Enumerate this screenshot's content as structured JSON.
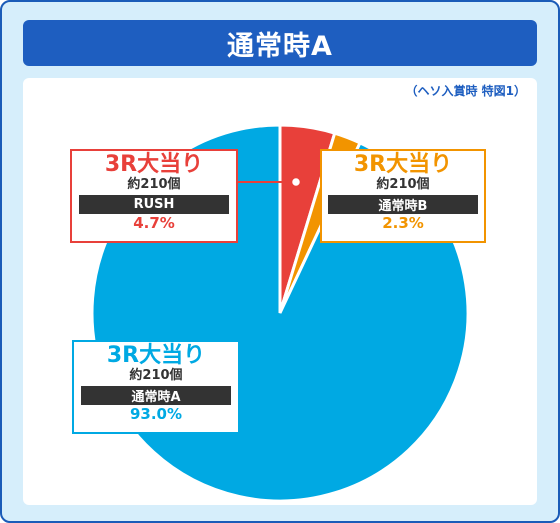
{
  "header": {
    "title": "通常時A"
  },
  "note": "（ヘソ入賞時 特図1）",
  "colors": {
    "rush": "#e8403a",
    "normal_b": "#f29400",
    "normal_a": "#00a9e3",
    "frame": "#1a5bb8",
    "background": "#d6eefb"
  },
  "chart_data": {
    "type": "pie",
    "title": "通常時A",
    "slices": [
      {
        "name": "3R大当り",
        "detail": "約210個",
        "category": "RUSH",
        "value": 4.7,
        "label": "4.7%",
        "color": "#e8403a"
      },
      {
        "name": "3R大当り",
        "detail": "約210個",
        "category": "通常時B",
        "value": 2.3,
        "label": "2.3%",
        "color": "#f29400"
      },
      {
        "name": "3R大当り",
        "detail": "約210個",
        "category": "通常時A",
        "value": 93.0,
        "label": "93.0%",
        "color": "#00a9e3"
      }
    ]
  }
}
